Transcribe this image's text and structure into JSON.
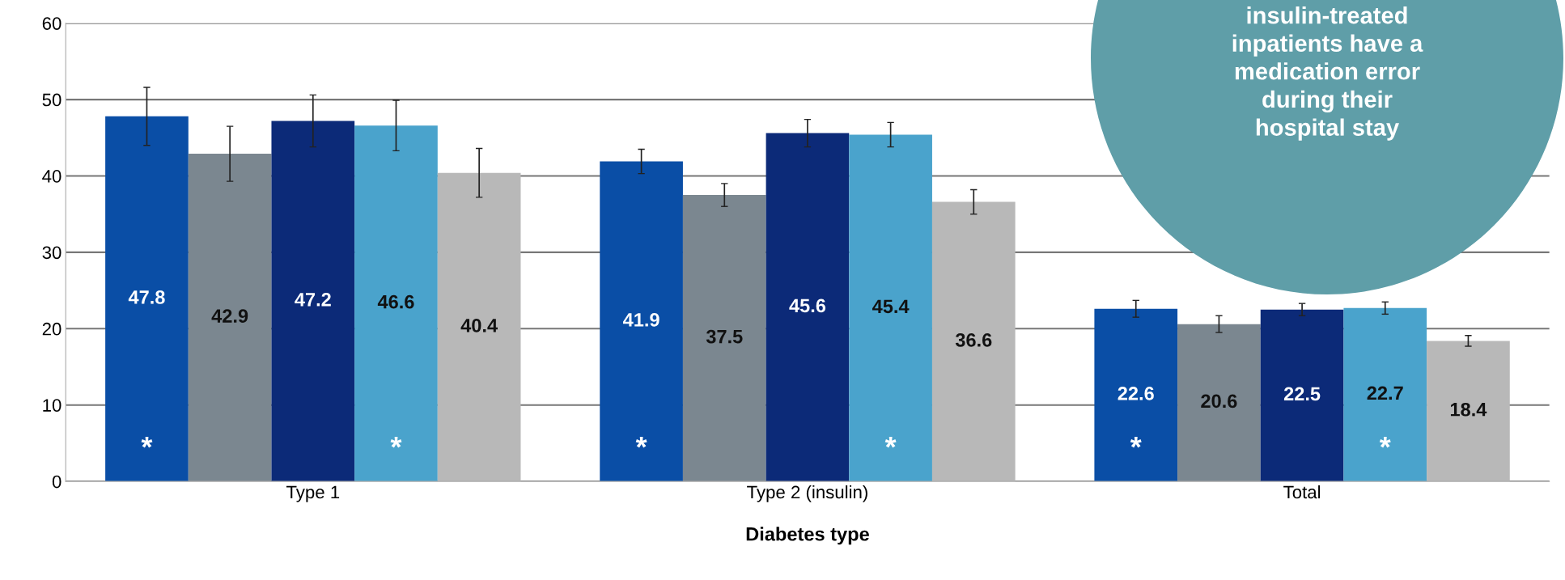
{
  "chart_data": {
    "type": "bar",
    "xlabel": "Diabetes type",
    "categories": [
      "Type 1",
      "Type 2 (insulin)",
      "Total"
    ],
    "series": [
      {
        "color": "#0a4ea6",
        "values": [
          47.8,
          41.9,
          22.6
        ],
        "errors": [
          3.8,
          1.6,
          1.1
        ]
      },
      {
        "color": "#7b8790",
        "values": [
          42.9,
          37.5,
          20.6
        ],
        "errors": [
          3.6,
          1.5,
          1.1
        ]
      },
      {
        "color": "#0c2a78",
        "values": [
          47.2,
          45.6,
          22.5
        ],
        "errors": [
          3.4,
          1.8,
          0.8
        ]
      },
      {
        "color": "#4aa3cc",
        "values": [
          46.6,
          45.4,
          22.7
        ],
        "errors": [
          3.3,
          1.6,
          0.8
        ]
      },
      {
        "color": "#b8b8b8",
        "values": [
          40.4,
          36.6,
          18.4
        ],
        "errors": [
          3.2,
          1.6,
          0.7
        ]
      }
    ],
    "ylim": [
      0,
      60
    ],
    "yticks": [
      0,
      10,
      20,
      30,
      40,
      50,
      60
    ],
    "grid": "y",
    "data_labels": true,
    "annotations": [
      "*",
      "*",
      "*",
      "*",
      "*",
      "*",
      "insulin-treated\ninpatients have a\nmedication error\nduring their\nhospital stay"
    ]
  }
}
